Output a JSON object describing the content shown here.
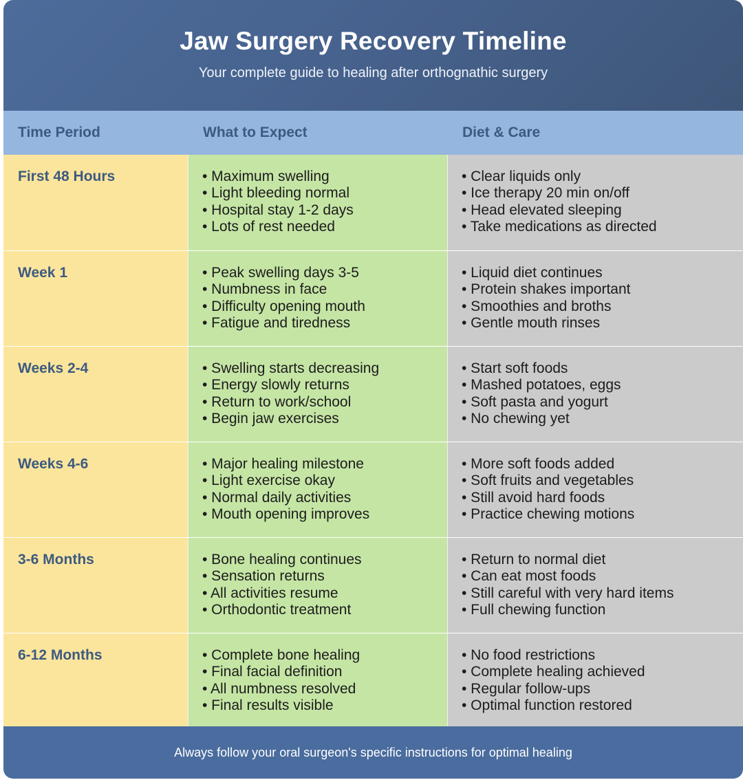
{
  "header": {
    "title": "Jaw Surgery Recovery Timeline",
    "subtitle": "Your complete guide to healing after orthognathic surgery"
  },
  "columns": {
    "period": "Time Period",
    "expect": "What to Expect",
    "care": "Diet & Care"
  },
  "rows": [
    {
      "period": "First 48 Hours",
      "expect": [
        "• Maximum swelling",
        "• Light bleeding normal",
        "• Hospital stay 1-2 days",
        "• Lots of rest needed"
      ],
      "care": [
        "• Clear liquids only",
        "• Ice therapy 20 min on/off",
        "• Head elevated sleeping",
        "• Take medications as directed"
      ]
    },
    {
      "period": "Week 1",
      "expect": [
        "• Peak swelling days 3-5",
        "• Numbness in face",
        "• Difficulty opening mouth",
        "• Fatigue and tiredness"
      ],
      "care": [
        "• Liquid diet continues",
        "• Protein shakes important",
        "• Smoothies and broths",
        "• Gentle mouth rinses"
      ]
    },
    {
      "period": "Weeks 2-4",
      "expect": [
        "• Swelling starts decreasing",
        "• Energy slowly returns",
        "• Return to work/school",
        "• Begin jaw exercises"
      ],
      "care": [
        "• Start soft foods",
        "• Mashed potatoes, eggs",
        "• Soft pasta and yogurt",
        "• No chewing yet"
      ]
    },
    {
      "period": "Weeks 4-6",
      "expect": [
        "• Major healing milestone",
        "• Light exercise okay",
        "• Normal daily activities",
        "• Mouth opening improves"
      ],
      "care": [
        "• More soft foods added",
        "• Soft fruits and vegetables",
        "• Still avoid hard foods",
        "• Practice chewing motions"
      ]
    },
    {
      "period": "3-6 Months",
      "expect": [
        "• Bone healing continues",
        "• Sensation returns",
        "• All activities resume",
        "• Orthodontic treatment"
      ],
      "care": [
        "• Return to normal diet",
        "• Can eat most foods",
        "• Still careful with very hard items",
        "• Full chewing function"
      ]
    },
    {
      "period": "6-12 Months",
      "expect": [
        "• Complete bone healing",
        "• Final facial definition",
        "• All numbness resolved",
        "• Final results visible"
      ],
      "care": [
        "• No food restrictions",
        "• Complete healing achieved",
        "• Regular follow-ups",
        "• Optimal function restored"
      ]
    }
  ],
  "footer": {
    "note": "Always follow your oral surgeon's specific instructions for optimal healing"
  },
  "colors": {
    "header_bg": "#46618c",
    "column_header_bg": "#95b6df",
    "period_bg": "#fbe59c",
    "expect_bg": "#c5e5a5",
    "care_bg": "#cbcbcb",
    "footer_bg": "#4a6c9e",
    "accent_text": "#3d5a80"
  }
}
